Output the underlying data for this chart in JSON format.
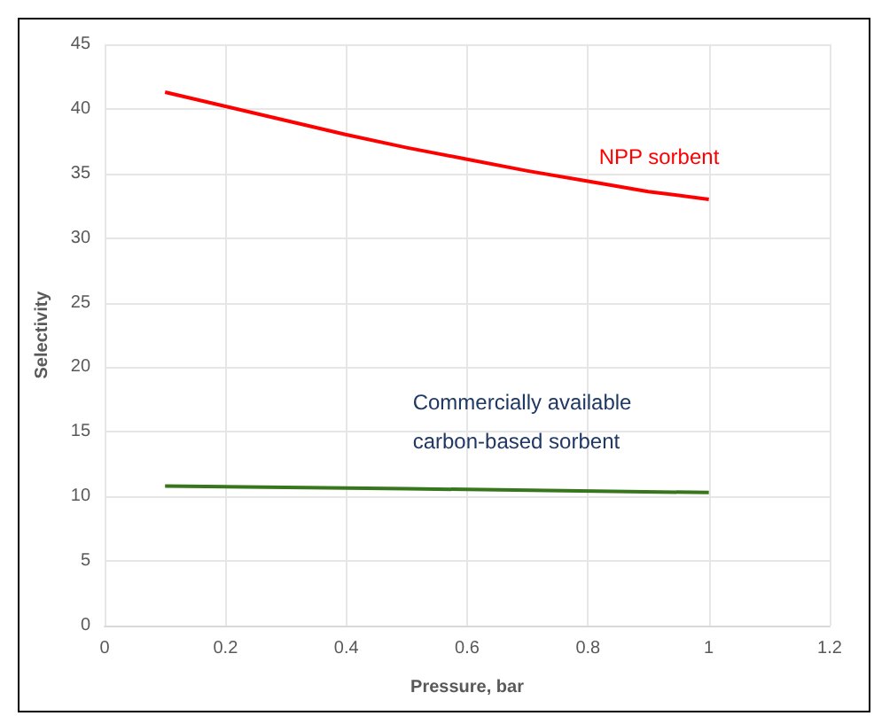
{
  "chart_data": {
    "type": "line",
    "xlabel": "Pressure, bar",
    "ylabel": "Selectivity",
    "xlim": [
      0,
      1.2
    ],
    "xticks": [
      0,
      0.2,
      0.4,
      0.6,
      0.8,
      1,
      1.2
    ],
    "ylim": [
      0,
      45
    ],
    "yticks": [
      0,
      5,
      10,
      15,
      20,
      25,
      30,
      35,
      40,
      45
    ],
    "grid": true,
    "marker": "none",
    "line_style": "solid",
    "legend": false,
    "series": [
      {
        "name": "NPP sorbent",
        "color": "#ff0000",
        "x": [
          0.1,
          0.2,
          0.3,
          0.4,
          0.5,
          0.6,
          0.7,
          0.8,
          0.9,
          1.0
        ],
        "values": [
          41.3,
          40.2,
          39.1,
          38.0,
          37.0,
          36.1,
          35.2,
          34.4,
          33.6,
          33.0
        ]
      },
      {
        "name": "Commercially available carbon-based sorbent",
        "color": "#38761d",
        "x": [
          0.1,
          0.5,
          1.0
        ],
        "values": [
          10.8,
          10.6,
          10.3
        ]
      }
    ]
  }
}
